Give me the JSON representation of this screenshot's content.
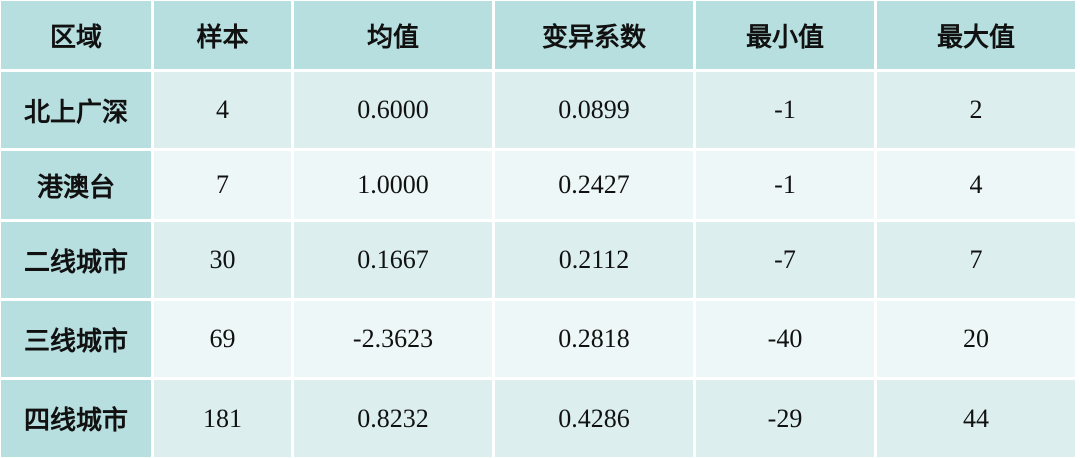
{
  "table": {
    "header": [
      "区域",
      "样本",
      "均值",
      "变异系数",
      "最小值",
      "最大值"
    ],
    "rows": [
      [
        "北上广深",
        "4",
        "0.6000",
        "0.0899",
        "-1",
        "2"
      ],
      [
        "港澳台",
        "7",
        "1.0000",
        "0.2427",
        "-1",
        "4"
      ],
      [
        "二线城市",
        "30",
        "0.1667",
        "0.2112",
        "-7",
        "7"
      ],
      [
        "三线城市",
        "69",
        "-2.3623",
        "0.2818",
        "-40",
        "20"
      ],
      [
        "四线城市",
        "181",
        "0.8232",
        "0.4286",
        "-29",
        "44"
      ]
    ]
  }
}
